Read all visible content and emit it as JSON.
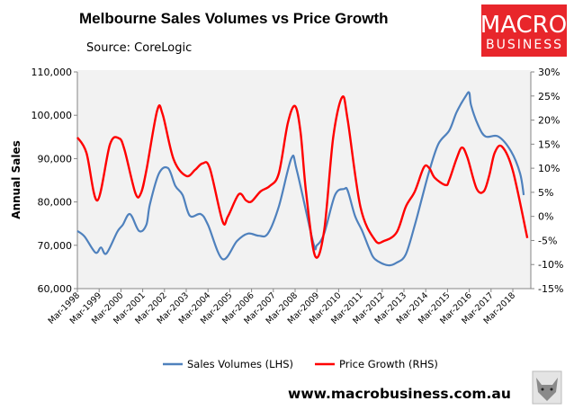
{
  "header": {
    "title": "Melbourne Sales Volumes vs Price Growth",
    "source": "Source: CoreLogic"
  },
  "logo": {
    "line1": "MACRO",
    "line2": "BUSINESS",
    "color": "#e8262b"
  },
  "footer": {
    "url": "www.macrobusiness.com.au",
    "icon": "wolf-icon"
  },
  "chart_data": {
    "type": "line",
    "title": "Melbourne Sales Volumes vs Price Growth",
    "ylabel": "Annual Sales",
    "ylim": [
      60000,
      110000
    ],
    "y2lim": [
      -15,
      30
    ],
    "yticks": [
      "60,000",
      "70,000",
      "80,000",
      "90,000",
      "100,000",
      "110,000"
    ],
    "y2ticks": [
      "-15%",
      "-10%",
      "-5%",
      "0%",
      "5%",
      "10%",
      "15%",
      "20%",
      "25%",
      "30%"
    ],
    "xticks": [
      "Mar-1998",
      "Mar-1999",
      "Mar-2000",
      "Mar-2001",
      "Mar-2002",
      "Mar-2003",
      "Mar-2004",
      "Mar-2005",
      "Mar-2006",
      "Mar-2007",
      "Mar-2008",
      "Mar-2009",
      "Mar-2010",
      "Mar-2011",
      "Mar-2012",
      "Mar-2013",
      "Mar-2014",
      "Mar-2015",
      "Mar-2016",
      "Mar-2017",
      "Mar-2018"
    ],
    "grid": false,
    "legend": "bottom",
    "series": [
      {
        "name": "Sales Volumes (LHS)",
        "axis": "left",
        "color": "#4f81bd",
        "points": [
          [
            "1998-03",
            73300
          ],
          [
            "1998-07",
            72000
          ],
          [
            "1999-01",
            68300
          ],
          [
            "1999-04",
            69500
          ],
          [
            "1999-07",
            68100
          ],
          [
            "2000-01",
            73100
          ],
          [
            "2000-04",
            74700
          ],
          [
            "2000-08",
            77200
          ],
          [
            "2001-01",
            73300
          ],
          [
            "2001-05",
            74700
          ],
          [
            "2001-07",
            79500
          ],
          [
            "2001-12",
            86600
          ],
          [
            "2002-05",
            87800
          ],
          [
            "2002-09",
            83700
          ],
          [
            "2003-01",
            81600
          ],
          [
            "2003-05",
            76800
          ],
          [
            "2003-11",
            77200
          ],
          [
            "2004-03",
            74700
          ],
          [
            "2004-11",
            66800
          ],
          [
            "2005-07",
            71000
          ],
          [
            "2006-01",
            72700
          ],
          [
            "2006-07",
            72200
          ],
          [
            "2006-12",
            72700
          ],
          [
            "2007-06",
            78900
          ],
          [
            "2008-01",
            90100
          ],
          [
            "2008-04",
            87200
          ],
          [
            "2009-01",
            70600
          ],
          [
            "2009-03",
            70000
          ],
          [
            "2009-07",
            72700
          ],
          [
            "2010-01",
            81600
          ],
          [
            "2010-06",
            83000
          ],
          [
            "2010-08",
            82600
          ],
          [
            "2010-12",
            76800
          ],
          [
            "2011-04",
            73300
          ],
          [
            "2011-08",
            69100
          ],
          [
            "2011-11",
            66800
          ],
          [
            "2012-06",
            65400
          ],
          [
            "2012-11",
            66000
          ],
          [
            "2013-04",
            67900
          ],
          [
            "2013-09",
            74700
          ],
          [
            "2014-01",
            81000
          ],
          [
            "2014-05",
            87200
          ],
          [
            "2014-10",
            93400
          ],
          [
            "2015-04",
            96500
          ],
          [
            "2015-08",
            100700
          ],
          [
            "2016-01",
            104400
          ],
          [
            "2016-03",
            105200
          ],
          [
            "2016-04",
            102300
          ],
          [
            "2016-08",
            97600
          ],
          [
            "2016-12",
            95100
          ],
          [
            "2017-07",
            95100
          ],
          [
            "2018-02",
            91700
          ],
          [
            "2018-07",
            86600
          ],
          [
            "2018-09",
            81600
          ]
        ]
      },
      {
        "name": "Price Growth (RHS)",
        "axis": "right",
        "color": "#ff0000",
        "points": [
          [
            "1998-03",
            16.4
          ],
          [
            "1998-08",
            13.2
          ],
          [
            "1999-02",
            3.3
          ],
          [
            "1999-09",
            15
          ],
          [
            "2000-02",
            16.2
          ],
          [
            "2000-05",
            13.8
          ],
          [
            "2000-11",
            4.8
          ],
          [
            "2001-02",
            4.8
          ],
          [
            "2001-05",
            9.5
          ],
          [
            "2001-11",
            22
          ],
          [
            "2002-02",
            21.2
          ],
          [
            "2002-08",
            11.9
          ],
          [
            "2003-03",
            8.4
          ],
          [
            "2003-08",
            9.7
          ],
          [
            "2003-12",
            11
          ],
          [
            "2004-04",
            10
          ],
          [
            "2004-11",
            -1
          ],
          [
            "2005-02",
            0
          ],
          [
            "2005-08",
            4.6
          ],
          [
            "2005-12",
            3.3
          ],
          [
            "2006-03",
            3.1
          ],
          [
            "2006-08",
            5.2
          ],
          [
            "2007-01",
            6.3
          ],
          [
            "2007-06",
            8.9
          ],
          [
            "2007-11",
            19.4
          ],
          [
            "2008-03",
            22.9
          ],
          [
            "2008-06",
            17.5
          ],
          [
            "2008-09",
            5.2
          ],
          [
            "2009-02",
            -8.2
          ],
          [
            "2009-07",
            -3
          ],
          [
            "2009-12",
            16.4
          ],
          [
            "2010-05",
            24.8
          ],
          [
            "2010-08",
            20
          ],
          [
            "2011-03",
            2
          ],
          [
            "2011-11",
            -4.9
          ],
          [
            "2012-04",
            -5.1
          ],
          [
            "2012-11",
            -3.3
          ],
          [
            "2013-04",
            2
          ],
          [
            "2013-09",
            5.2
          ],
          [
            "2014-02",
            10.2
          ],
          [
            "2014-05",
            10
          ],
          [
            "2014-08",
            8
          ],
          [
            "2015-02",
            6.5
          ],
          [
            "2015-04",
            7.6
          ],
          [
            "2015-08",
            12
          ],
          [
            "2015-11",
            14.3
          ],
          [
            "2016-02",
            12.2
          ],
          [
            "2016-07",
            5.8
          ],
          [
            "2016-11",
            5.2
          ],
          [
            "2017-02",
            8.5
          ],
          [
            "2017-05",
            13.2
          ],
          [
            "2017-09",
            14.5
          ],
          [
            "2018-03",
            9.5
          ],
          [
            "2018-11",
            -4.5
          ]
        ]
      }
    ]
  }
}
